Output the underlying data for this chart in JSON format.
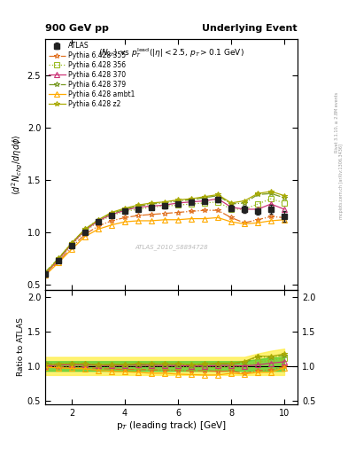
{
  "title_left": "900 GeV pp",
  "title_right": "Underlying Event",
  "watermark": "ATLAS_2010_S8894728",
  "ylabel_main": "$\\langle d^2 N_{chg}/d\\eta d\\phi\\rangle$",
  "ylabel_ratio": "Ratio to ATLAS",
  "xlabel": "p$_T$ (leading track) [GeV]",
  "xlim": [
    1.0,
    10.5
  ],
  "ylim_main": [
    0.45,
    2.85
  ],
  "ylim_ratio": [
    0.45,
    2.1
  ],
  "yticks_main": [
    0.5,
    1.0,
    1.5,
    2.0,
    2.5
  ],
  "yticks_ratio": [
    0.5,
    1.0,
    1.5,
    2.0
  ],
  "xticks": [
    2,
    4,
    6,
    8,
    10
  ],
  "atlas_x": [
    1.0,
    1.5,
    2.0,
    2.5,
    3.0,
    3.5,
    4.0,
    4.5,
    5.0,
    5.5,
    6.0,
    6.5,
    7.0,
    7.5,
    8.0,
    8.5,
    9.0,
    9.5,
    10.0
  ],
  "atlas_y": [
    0.6,
    0.73,
    0.87,
    1.0,
    1.1,
    1.16,
    1.2,
    1.22,
    1.24,
    1.25,
    1.27,
    1.29,
    1.3,
    1.31,
    1.23,
    1.22,
    1.2,
    1.22,
    1.15
  ],
  "atlas_yerr": [
    0.02,
    0.02,
    0.02,
    0.02,
    0.02,
    0.02,
    0.02,
    0.02,
    0.02,
    0.02,
    0.02,
    0.02,
    0.02,
    0.02,
    0.03,
    0.03,
    0.03,
    0.04,
    0.05
  ],
  "py355_x": [
    1.0,
    1.5,
    2.0,
    2.5,
    3.0,
    3.5,
    4.0,
    4.5,
    5.0,
    5.5,
    6.0,
    6.5,
    7.0,
    7.5,
    8.0,
    8.5,
    9.0,
    9.5,
    10.0
  ],
  "py355_y": [
    0.6,
    0.72,
    0.86,
    0.98,
    1.06,
    1.11,
    1.14,
    1.16,
    1.17,
    1.18,
    1.19,
    1.2,
    1.21,
    1.21,
    1.14,
    1.09,
    1.12,
    1.15,
    1.14
  ],
  "py355_color": "#e07020",
  "py355_ls": "-.",
  "py355_marker": "*",
  "py355_label": "Pythia 6.428 355",
  "py356_x": [
    1.0,
    1.5,
    2.0,
    2.5,
    3.0,
    3.5,
    4.0,
    4.5,
    5.0,
    5.5,
    6.0,
    6.5,
    7.0,
    7.5,
    8.0,
    8.5,
    9.0,
    9.5,
    10.0
  ],
  "py356_y": [
    0.61,
    0.74,
    0.88,
    1.01,
    1.1,
    1.16,
    1.2,
    1.22,
    1.24,
    1.25,
    1.26,
    1.27,
    1.28,
    1.29,
    1.22,
    1.22,
    1.27,
    1.32,
    1.28
  ],
  "py356_color": "#99bb22",
  "py356_ls": ":",
  "py356_marker": "s",
  "py356_label": "Pythia 6.428 356",
  "py370_x": [
    1.0,
    1.5,
    2.0,
    2.5,
    3.0,
    3.5,
    4.0,
    4.5,
    5.0,
    5.5,
    6.0,
    6.5,
    7.0,
    7.5,
    8.0,
    8.5,
    9.0,
    9.5,
    10.0
  ],
  "py370_y": [
    0.6,
    0.74,
    0.89,
    1.02,
    1.11,
    1.17,
    1.21,
    1.24,
    1.25,
    1.26,
    1.28,
    1.29,
    1.3,
    1.32,
    1.24,
    1.22,
    1.22,
    1.27,
    1.22
  ],
  "py370_color": "#cc3377",
  "py370_ls": "-",
  "py370_marker": "^",
  "py370_label": "Pythia 6.428 370",
  "py379_x": [
    1.0,
    1.5,
    2.0,
    2.5,
    3.0,
    3.5,
    4.0,
    4.5,
    5.0,
    5.5,
    6.0,
    6.5,
    7.0,
    7.5,
    8.0,
    8.5,
    9.0,
    9.5,
    10.0
  ],
  "py379_y": [
    0.62,
    0.75,
    0.9,
    1.03,
    1.12,
    1.18,
    1.22,
    1.25,
    1.27,
    1.28,
    1.3,
    1.31,
    1.33,
    1.35,
    1.27,
    1.28,
    1.36,
    1.37,
    1.33
  ],
  "py379_color": "#779922",
  "py379_ls": "-.",
  "py379_marker": "*",
  "py379_label": "Pythia 6.428 379",
  "pyambt1_x": [
    1.0,
    1.5,
    2.0,
    2.5,
    3.0,
    3.5,
    4.0,
    4.5,
    5.0,
    5.5,
    6.0,
    6.5,
    7.0,
    7.5,
    8.0,
    8.5,
    9.0,
    9.5,
    10.0
  ],
  "pyambt1_y": [
    0.59,
    0.71,
    0.84,
    0.96,
    1.03,
    1.07,
    1.1,
    1.11,
    1.11,
    1.12,
    1.12,
    1.13,
    1.13,
    1.14,
    1.1,
    1.08,
    1.09,
    1.11,
    1.12
  ],
  "pyambt1_color": "#ffaa00",
  "pyambt1_ls": "-",
  "pyambt1_marker": "^",
  "pyambt1_label": "Pythia 6.428 ambt1",
  "pyz2_x": [
    1.0,
    1.5,
    2.0,
    2.5,
    3.0,
    3.5,
    4.0,
    4.5,
    5.0,
    5.5,
    6.0,
    6.5,
    7.0,
    7.5,
    8.0,
    8.5,
    9.0,
    9.5,
    10.0
  ],
  "pyz2_y": [
    0.61,
    0.75,
    0.9,
    1.03,
    1.12,
    1.19,
    1.23,
    1.26,
    1.28,
    1.29,
    1.31,
    1.32,
    1.34,
    1.36,
    1.28,
    1.3,
    1.37,
    1.39,
    1.35
  ],
  "pyz2_color": "#aaaa00",
  "pyz2_ls": "-",
  "pyz2_marker": "*",
  "pyz2_label": "Pythia 6.428 z2",
  "band_x": [
    1.0,
    1.5,
    2.0,
    2.5,
    3.0,
    3.5,
    4.0,
    4.5,
    5.0,
    5.5,
    6.0,
    6.5,
    7.0,
    7.5,
    8.0,
    8.5,
    9.0,
    9.5,
    10.0
  ],
  "band_green_lo": [
    0.93,
    0.93,
    0.93,
    0.93,
    0.93,
    0.93,
    0.93,
    0.93,
    0.93,
    0.93,
    0.93,
    0.93,
    0.93,
    0.93,
    0.93,
    0.93,
    0.93,
    0.93,
    0.93
  ],
  "band_green_hi": [
    1.07,
    1.07,
    1.07,
    1.07,
    1.07,
    1.07,
    1.07,
    1.07,
    1.07,
    1.07,
    1.07,
    1.07,
    1.07,
    1.07,
    1.07,
    1.07,
    1.1,
    1.12,
    1.13
  ],
  "band_yellow_lo": [
    0.87,
    0.87,
    0.87,
    0.87,
    0.87,
    0.87,
    0.87,
    0.87,
    0.87,
    0.87,
    0.87,
    0.87,
    0.87,
    0.87,
    0.87,
    0.87,
    0.87,
    0.87,
    0.87
  ],
  "band_yellow_hi": [
    1.13,
    1.13,
    1.13,
    1.13,
    1.13,
    1.13,
    1.13,
    1.13,
    1.13,
    1.13,
    1.13,
    1.13,
    1.13,
    1.13,
    1.13,
    1.13,
    1.18,
    1.22,
    1.25
  ],
  "bg_color": "#ffffff",
  "atlas_color": "#222222",
  "atlas_marker": "s",
  "atlas_markersize": 4,
  "line_markersize": 4
}
